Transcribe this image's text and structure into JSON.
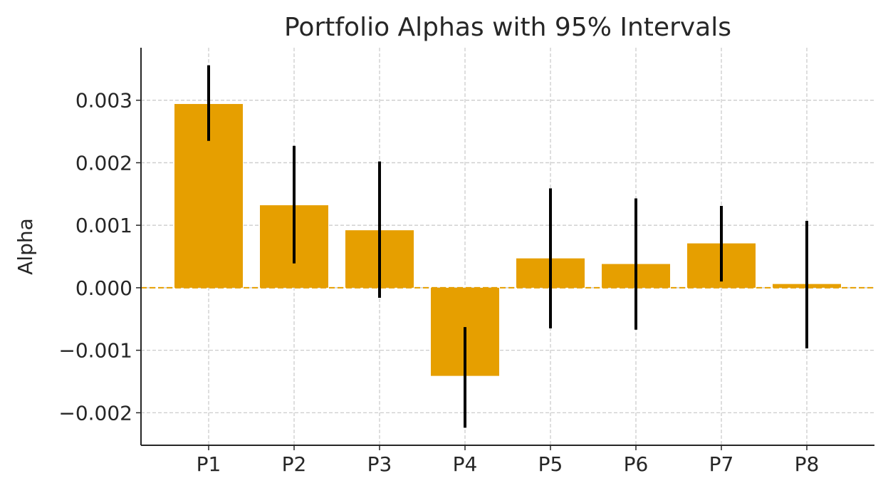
{
  "chart_data": {
    "type": "bar",
    "title": "Portfolio Alphas with 95% Intervals",
    "xlabel": "",
    "ylabel": "Alpha",
    "categories": [
      "P1",
      "P2",
      "P3",
      "P4",
      "P5",
      "P6",
      "P7",
      "P8"
    ],
    "values": [
      0.00294,
      0.00132,
      0.00092,
      -0.00141,
      0.00047,
      0.00038,
      0.00071,
      6e-05
    ],
    "ci_low": [
      0.00235,
      0.00039,
      -0.00016,
      -0.00224,
      -0.00065,
      -0.00067,
      0.0001,
      -0.00097
    ],
    "ci_high": [
      0.00356,
      0.00227,
      0.00202,
      -0.00063,
      0.00159,
      0.00143,
      0.00131,
      0.00107
    ],
    "ylim": [
      -0.00252,
      0.00384
    ],
    "yticks": [
      -0.002,
      -0.001,
      0.0,
      0.001,
      0.002,
      0.003
    ],
    "ytick_labels": [
      "−0.002",
      "−0.001",
      "0.000",
      "0.001",
      "0.002",
      "0.003"
    ],
    "grid": true,
    "reference_line": 0,
    "colors": {
      "bar": "#E69F00",
      "error": "#000000",
      "grid": "#cccccc",
      "zero_line": "#E69F00"
    }
  }
}
